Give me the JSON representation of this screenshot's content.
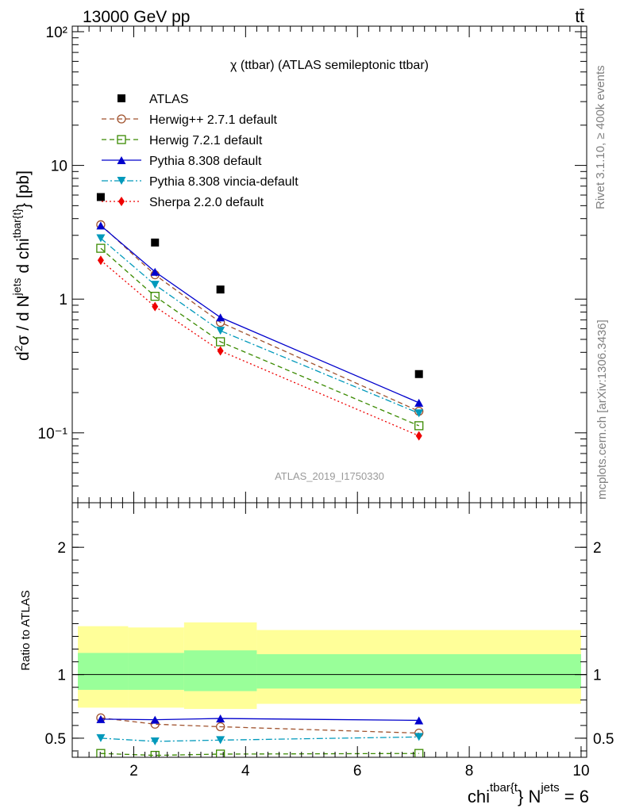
{
  "header": {
    "energy_label": "13000 GeV pp",
    "process_label": "tt̄"
  },
  "side_text": {
    "rivet": "Rivet 3.1.10, ≥ 400k events",
    "mcplots": "mcplots.cern.ch [arXiv:1306.3436]"
  },
  "chart_data": [
    {
      "type": "line",
      "title": "χ (ttbar) (ATLAS semileptonic ttbar)",
      "watermark": "ATLAS_2019_I1750330",
      "ylabel": "d²σ / d N^jets d chi^tbar{t} [pb]",
      "yscale": "log",
      "ylim": [
        0.03,
        110
      ],
      "xlim": [
        0.9,
        10.1
      ],
      "yticks": [
        "10⁻¹",
        "1",
        "10",
        "10²"
      ],
      "legend_placement": "top-left",
      "x": [
        1.41,
        2.38,
        3.55,
        7.1
      ],
      "series": [
        {
          "name": "ATLAS",
          "values": [
            5.8,
            2.65,
            1.18,
            0.275
          ],
          "color": "#000000",
          "style": "markers"
        },
        {
          "name": "Herwig++ 2.7.1 default",
          "values": [
            3.6,
            1.52,
            0.67,
            0.145
          ],
          "color": "#a0522d",
          "style": "dashed"
        },
        {
          "name": "Herwig 7.2.1 default",
          "values": [
            2.4,
            1.05,
            0.48,
            0.113
          ],
          "color": "#3a8a00",
          "style": "dashed"
        },
        {
          "name": "Pythia 8.308 default",
          "values": [
            3.55,
            1.6,
            0.73,
            0.168
          ],
          "color": "#0000cc",
          "style": "solid"
        },
        {
          "name": "Pythia 8.308 vincia-default",
          "values": [
            2.85,
            1.28,
            0.58,
            0.14
          ],
          "color": "#0099bb",
          "style": "dashdot"
        },
        {
          "name": "Sherpa 2.2.0 default",
          "values": [
            1.95,
            0.88,
            0.41,
            0.095
          ],
          "color": "#ee0000",
          "style": "dotted"
        }
      ]
    },
    {
      "type": "line",
      "ylabel": "Ratio to ATLAS",
      "xlabel": "chi^tbar{t} N^jets = 6",
      "ylim": [
        0.35,
        2.35
      ],
      "xlim": [
        0.9,
        10.1
      ],
      "xticks": [
        "2",
        "4",
        "6",
        "8",
        "10"
      ],
      "yticks": [
        "0.5",
        "1",
        "2"
      ],
      "uncertainty_bands": [
        {
          "x": [
            1.0,
            1.9
          ],
          "inner": [
            0.88,
            1.17
          ],
          "outer": [
            0.74,
            1.38
          ]
        },
        {
          "x": [
            1.9,
            2.9
          ],
          "inner": [
            0.88,
            1.17
          ],
          "outer": [
            0.74,
            1.37
          ]
        },
        {
          "x": [
            2.9,
            4.2
          ],
          "inner": [
            0.87,
            1.19
          ],
          "outer": [
            0.73,
            1.41
          ]
        },
        {
          "x": [
            4.2,
            10.0
          ],
          "inner": [
            0.89,
            1.16
          ],
          "outer": [
            0.77,
            1.35
          ]
        }
      ],
      "x": [
        1.41,
        2.38,
        3.55,
        7.1
      ],
      "series": [
        {
          "name": "Herwig++ 2.7.1 default",
          "values": [
            0.66,
            0.61,
            0.59,
            0.54
          ]
        },
        {
          "name": "Herwig 7.2.1 default",
          "values": [
            0.38,
            0.365,
            0.375,
            0.38
          ]
        },
        {
          "name": "Pythia 8.308 default",
          "values": [
            0.65,
            0.645,
            0.655,
            0.64
          ]
        },
        {
          "name": "Pythia 8.308 vincia-default",
          "values": [
            0.5,
            0.475,
            0.485,
            0.51
          ]
        }
      ]
    }
  ]
}
